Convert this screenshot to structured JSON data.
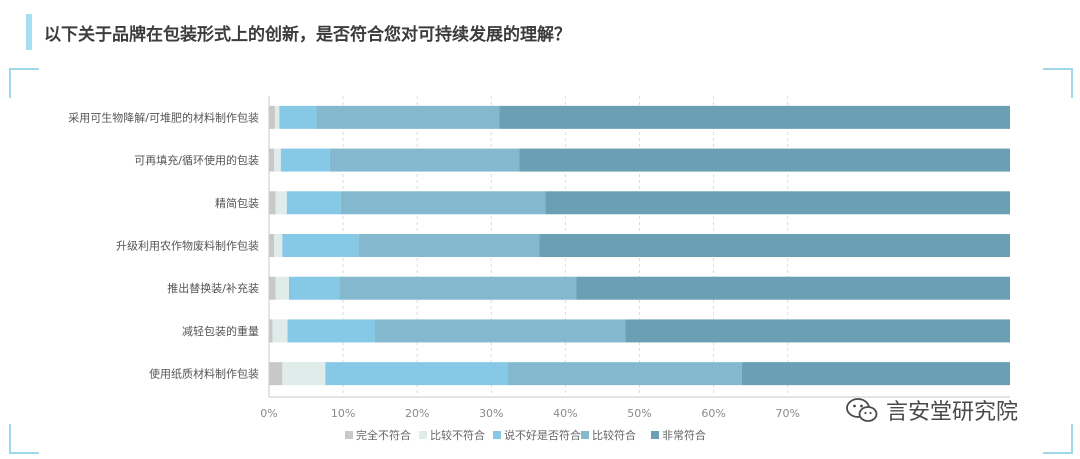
{
  "title": "以下关于品牌在包装形式上的创新，是否符合您对可持续发展的理解？",
  "brand": {
    "name": "言安堂研究院",
    "icon": "wechat-icon"
  },
  "colors": {
    "accent": "#a6def2",
    "corner": "#9fd8ea"
  },
  "chart_data": {
    "type": "bar",
    "orientation": "horizontal",
    "stacked": true,
    "categories": [
      "采用可生物降解/可堆肥的材料制作包装",
      "可再填充/循环使用的包装",
      "精简包装",
      "升级利用农作物废料制作包装",
      "推出替换装/补充装",
      "减轻包装的重量",
      "使用纸质材料制作包装"
    ],
    "series": [
      {
        "name": "完全不符合",
        "color": "#c8c8c8",
        "values": [
          0.8,
          0.7,
          0.9,
          0.7,
          0.9,
          0.5,
          1.8
        ]
      },
      {
        "name": "比较不符合",
        "color": "#dfecea",
        "values": [
          0.6,
          0.9,
          1.5,
          1.1,
          1.8,
          2.0,
          5.8
        ]
      },
      {
        "name": "说不好是否符合",
        "color": "#86c9e6",
        "values": [
          5.0,
          6.6,
          7.3,
          10.3,
          6.8,
          11.8,
          24.6
        ]
      },
      {
        "name": "比较符合",
        "color": "#83b8cf",
        "values": [
          24.7,
          25.6,
          27.6,
          24.4,
          32.0,
          33.8,
          31.6
        ]
      },
      {
        "name": "非常符合",
        "color": "#6a9fb4",
        "values": [
          68.9,
          66.2,
          62.7,
          63.5,
          58.5,
          51.9,
          36.2
        ]
      }
    ],
    "xlim": [
      0,
      100
    ],
    "xticks": [
      "0%",
      "10%",
      "20%",
      "30%",
      "40%",
      "50%",
      "60%",
      "70%"
    ],
    "xtick_values": [
      0,
      10,
      20,
      30,
      40,
      50,
      60,
      70
    ],
    "legend_position": "bottom",
    "grid": true
  }
}
